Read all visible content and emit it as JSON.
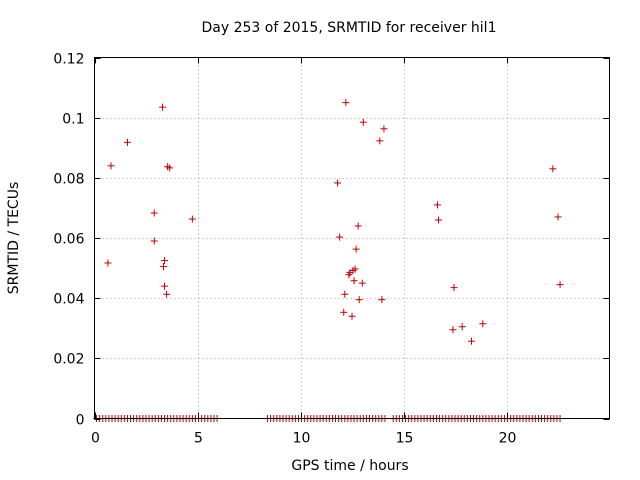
{
  "chart_data": {
    "type": "scatter",
    "title": "Day 253 of 2015, SRMTID for receiver hil1",
    "xlabel": "GPS time / hours",
    "ylabel": "SRMTID / TECUs",
    "xlim": [
      0,
      25
    ],
    "ylim": [
      0,
      0.12
    ],
    "xticks": [
      0,
      5,
      10,
      15,
      20
    ],
    "xtick_labels": [
      "0",
      "5",
      "10",
      "15",
      "20"
    ],
    "yticks": [
      0,
      0.02,
      0.04,
      0.06,
      0.08,
      0.1,
      0.12
    ],
    "ytick_labels": [
      "0",
      "0.02",
      "0.04",
      "0.06",
      "0.08",
      "0.1",
      "0.12"
    ],
    "grid": true,
    "marker_color": "#c00000",
    "series": [
      {
        "name": "SRMTID",
        "points": [
          [
            0.65,
            0.0517
          ],
          [
            0.8,
            0.084
          ],
          [
            1.6,
            0.0918
          ],
          [
            2.9,
            0.0683
          ],
          [
            2.9,
            0.059
          ],
          [
            3.3,
            0.1035
          ],
          [
            3.35,
            0.0505
          ],
          [
            3.4,
            0.0525
          ],
          [
            3.4,
            0.044
          ],
          [
            3.5,
            0.0413
          ],
          [
            3.55,
            0.0837
          ],
          [
            3.65,
            0.0833
          ],
          [
            4.75,
            0.0663
          ],
          [
            11.8,
            0.0783
          ],
          [
            11.9,
            0.0603
          ],
          [
            12.1,
            0.0353
          ],
          [
            12.15,
            0.0413
          ],
          [
            12.2,
            0.105
          ],
          [
            12.35,
            0.0478
          ],
          [
            12.4,
            0.0485
          ],
          [
            12.5,
            0.034
          ],
          [
            12.55,
            0.0492
          ],
          [
            12.6,
            0.0458
          ],
          [
            12.65,
            0.0497
          ],
          [
            12.7,
            0.0563
          ],
          [
            12.8,
            0.064
          ],
          [
            12.85,
            0.0395
          ],
          [
            13.0,
            0.045
          ],
          [
            13.05,
            0.0985
          ],
          [
            13.85,
            0.0923
          ],
          [
            13.95,
            0.0395
          ],
          [
            14.05,
            0.0963
          ],
          [
            16.65,
            0.071
          ],
          [
            16.7,
            0.066
          ],
          [
            17.4,
            0.0295
          ],
          [
            17.45,
            0.0435
          ],
          [
            17.85,
            0.0305
          ],
          [
            18.3,
            0.0257
          ],
          [
            18.85,
            0.0315
          ],
          [
            22.25,
            0.083
          ],
          [
            22.5,
            0.067
          ],
          [
            22.6,
            0.0445
          ]
        ],
        "zero_segments": [
          [
            0.1,
            6.0
          ],
          [
            8.4,
            14.1
          ],
          [
            14.5,
            22.65
          ]
        ],
        "zero_step": 0.15
      }
    ]
  }
}
